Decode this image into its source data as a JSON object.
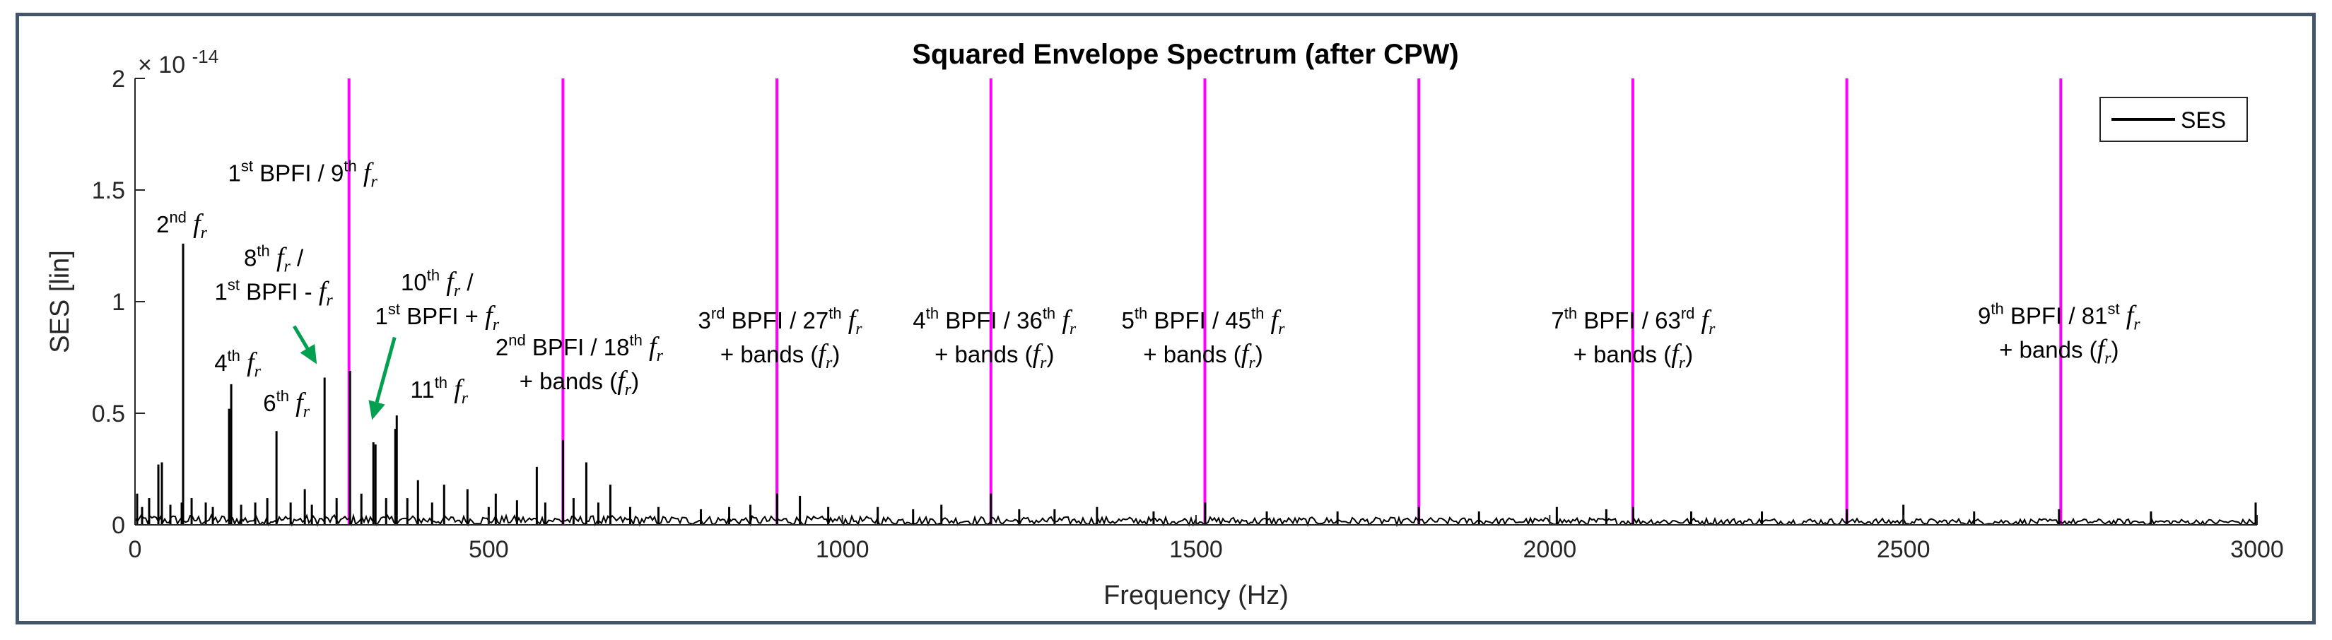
{
  "chart_data": {
    "type": "line",
    "title": "Squared Envelope Spectrum (after CPW)",
    "xlabel": "Frequency (Hz)",
    "ylabel": "SES [lin]",
    "y_exponent": "× 10",
    "y_exponent_power": "-14",
    "xlim": [
      0,
      3000
    ],
    "ylim": [
      0,
      2
    ],
    "x_ticks": [
      "0",
      "500",
      "1000",
      "1500",
      "2000",
      "2500",
      "3000"
    ],
    "y_ticks": [
      "0",
      "0.5",
      "1",
      "1.5",
      "2"
    ],
    "grid": false,
    "legend_position": "top-right",
    "series": [
      {
        "name": "SES",
        "color": "#000000",
        "peaks": [
          {
            "x": 3,
            "y": 0.14
          },
          {
            "x": 10,
            "y": 0.08
          },
          {
            "x": 20,
            "y": 0.12
          },
          {
            "x": 33,
            "y": 0.27
          },
          {
            "x": 38,
            "y": 0.28
          },
          {
            "x": 50,
            "y": 0.09
          },
          {
            "x": 66,
            "y": 0.1
          },
          {
            "x": 68,
            "y": 1.26
          },
          {
            "x": 80,
            "y": 0.12
          },
          {
            "x": 100,
            "y": 0.1
          },
          {
            "x": 110,
            "y": 0.08
          },
          {
            "x": 133,
            "y": 0.52
          },
          {
            "x": 136,
            "y": 0.63
          },
          {
            "x": 150,
            "y": 0.09
          },
          {
            "x": 170,
            "y": 0.1
          },
          {
            "x": 187,
            "y": 0.12
          },
          {
            "x": 200,
            "y": 0.42
          },
          {
            "x": 220,
            "y": 0.1
          },
          {
            "x": 240,
            "y": 0.16
          },
          {
            "x": 250,
            "y": 0.09
          },
          {
            "x": 268,
            "y": 0.66
          },
          {
            "x": 285,
            "y": 0.12
          },
          {
            "x": 304,
            "y": 0.69
          },
          {
            "x": 320,
            "y": 0.14
          },
          {
            "x": 337,
            "y": 0.37
          },
          {
            "x": 340,
            "y": 0.36
          },
          {
            "x": 355,
            "y": 0.12
          },
          {
            "x": 368,
            "y": 0.43
          },
          {
            "x": 370,
            "y": 0.49
          },
          {
            "x": 385,
            "y": 0.12
          },
          {
            "x": 400,
            "y": 0.2
          },
          {
            "x": 420,
            "y": 0.1
          },
          {
            "x": 437,
            "y": 0.18
          },
          {
            "x": 470,
            "y": 0.16
          },
          {
            "x": 500,
            "y": 0.08
          },
          {
            "x": 510,
            "y": 0.14
          },
          {
            "x": 540,
            "y": 0.11
          },
          {
            "x": 568,
            "y": 0.26
          },
          {
            "x": 580,
            "y": 0.1
          },
          {
            "x": 605,
            "y": 0.38
          },
          {
            "x": 620,
            "y": 0.12
          },
          {
            "x": 638,
            "y": 0.28
          },
          {
            "x": 655,
            "y": 0.1
          },
          {
            "x": 672,
            "y": 0.18
          },
          {
            "x": 700,
            "y": 0.08
          },
          {
            "x": 740,
            "y": 0.08
          },
          {
            "x": 800,
            "y": 0.07
          },
          {
            "x": 840,
            "y": 0.08
          },
          {
            "x": 870,
            "y": 0.09
          },
          {
            "x": 908,
            "y": 0.14
          },
          {
            "x": 940,
            "y": 0.13
          },
          {
            "x": 980,
            "y": 0.08
          },
          {
            "x": 1050,
            "y": 0.08
          },
          {
            "x": 1100,
            "y": 0.07
          },
          {
            "x": 1140,
            "y": 0.09
          },
          {
            "x": 1210,
            "y": 0.14
          },
          {
            "x": 1250,
            "y": 0.07
          },
          {
            "x": 1300,
            "y": 0.07
          },
          {
            "x": 1360,
            "y": 0.08
          },
          {
            "x": 1440,
            "y": 0.06
          },
          {
            "x": 1513,
            "y": 0.1
          },
          {
            "x": 1600,
            "y": 0.06
          },
          {
            "x": 1700,
            "y": 0.06
          },
          {
            "x": 1815,
            "y": 0.08
          },
          {
            "x": 1900,
            "y": 0.06
          },
          {
            "x": 2010,
            "y": 0.08
          },
          {
            "x": 2080,
            "y": 0.07
          },
          {
            "x": 2118,
            "y": 0.08
          },
          {
            "x": 2200,
            "y": 0.06
          },
          {
            "x": 2300,
            "y": 0.06
          },
          {
            "x": 2420,
            "y": 0.07
          },
          {
            "x": 2500,
            "y": 0.09
          },
          {
            "x": 2600,
            "y": 0.06
          },
          {
            "x": 2720,
            "y": 0.07
          },
          {
            "x": 2850,
            "y": 0.06
          },
          {
            "x": 2998,
            "y": 0.1
          }
        ]
      }
    ],
    "vertical_markers": {
      "color": "#ff00ff",
      "x": [
        302.5,
        605,
        907.5,
        1210,
        1512.5,
        1815,
        2117.5,
        2420,
        2722.5
      ]
    },
    "annotations": [
      {
        "lines": [
          [
            [
              "1",
              ""
            ],
            [
              "st",
              "sup"
            ],
            [
              " BPFI / 9",
              ""
            ],
            [
              "th",
              "sup"
            ],
            [
              " ",
              ""
            ],
            [
              "f",
              "it"
            ],
            [
              "r",
              "sub"
            ]
          ]
        ],
        "x": 237,
        "y": 1.54
      },
      {
        "lines": [
          [
            [
              "2",
              ""
            ],
            [
              "nd",
              "sup"
            ],
            [
              " ",
              ""
            ],
            [
              "f",
              "it"
            ],
            [
              "r",
              "sub"
            ]
          ]
        ],
        "x": 66,
        "y": 1.31
      },
      {
        "lines": [
          [
            [
              "8",
              ""
            ],
            [
              "th",
              "sup"
            ],
            [
              " ",
              ""
            ],
            [
              "f",
              "it"
            ],
            [
              "r",
              "sub"
            ],
            [
              " /",
              ""
            ]
          ],
          [
            [
              "1",
              ""
            ],
            [
              "st",
              "sup"
            ],
            [
              " BPFI - ",
              ""
            ],
            [
              "f",
              "it"
            ],
            [
              "r",
              "sub"
            ]
          ]
        ],
        "x": 196,
        "y": 1.16
      },
      {
        "lines": [
          [
            [
              "10",
              ""
            ],
            [
              "th",
              "sup"
            ],
            [
              " ",
              ""
            ],
            [
              "f",
              "it"
            ],
            [
              "r",
              "sub"
            ],
            [
              " /",
              ""
            ]
          ],
          [
            [
              "1",
              ""
            ],
            [
              "st",
              "sup"
            ],
            [
              " BPFI + ",
              ""
            ],
            [
              "f",
              "it"
            ],
            [
              "r",
              "sub"
            ]
          ]
        ],
        "x": 427,
        "y": 1.05
      },
      {
        "lines": [
          [
            [
              "4",
              ""
            ],
            [
              "th",
              "sup"
            ],
            [
              " ",
              ""
            ],
            [
              "f",
              "it"
            ],
            [
              "r",
              "sub"
            ]
          ]
        ],
        "x": 145,
        "y": 0.69
      },
      {
        "lines": [
          [
            [
              "6",
              ""
            ],
            [
              "th",
              "sup"
            ],
            [
              " ",
              ""
            ],
            [
              "f",
              "it"
            ],
            [
              "r",
              "sub"
            ]
          ]
        ],
        "x": 214,
        "y": 0.51
      },
      {
        "lines": [
          [
            [
              "11",
              ""
            ],
            [
              "th",
              "sup"
            ],
            [
              " ",
              ""
            ],
            [
              "f",
              "it"
            ],
            [
              "r",
              "sub"
            ]
          ]
        ],
        "x": 430,
        "y": 0.57
      },
      {
        "lines": [
          [
            [
              "2",
              ""
            ],
            [
              "nd",
              "sup"
            ],
            [
              " BPFI / 18",
              ""
            ],
            [
              "th",
              "sup"
            ],
            [
              " ",
              ""
            ],
            [
              "f",
              "it"
            ],
            [
              "r",
              "sub"
            ]
          ],
          [
            [
              "+ bands (",
              ""
            ],
            [
              "f",
              "it"
            ],
            [
              "r",
              "sub"
            ],
            [
              ")",
              ""
            ]
          ]
        ],
        "x": 628,
        "y": 0.76
      },
      {
        "lines": [
          [
            [
              "3",
              ""
            ],
            [
              "rd",
              "sup"
            ],
            [
              " BPFI / 27",
              ""
            ],
            [
              "th",
              "sup"
            ],
            [
              " ",
              ""
            ],
            [
              "f",
              "it"
            ],
            [
              "r",
              "sub"
            ]
          ],
          [
            [
              "+ bands (",
              ""
            ],
            [
              "f",
              "it"
            ],
            [
              "r",
              "sub"
            ],
            [
              ")",
              ""
            ]
          ]
        ],
        "x": 912,
        "y": 0.88
      },
      {
        "lines": [
          [
            [
              "4",
              ""
            ],
            [
              "th",
              "sup"
            ],
            [
              " BPFI / 36",
              ""
            ],
            [
              "th",
              "sup"
            ],
            [
              " ",
              ""
            ],
            [
              "f",
              "it"
            ],
            [
              "r",
              "sub"
            ]
          ],
          [
            [
              "+ bands (",
              ""
            ],
            [
              "f",
              "it"
            ],
            [
              "r",
              "sub"
            ],
            [
              ")",
              ""
            ]
          ]
        ],
        "x": 1215,
        "y": 0.88
      },
      {
        "lines": [
          [
            [
              "5",
              ""
            ],
            [
              "th",
              "sup"
            ],
            [
              " BPFI / 45",
              ""
            ],
            [
              "th",
              "sup"
            ],
            [
              " ",
              ""
            ],
            [
              "f",
              "it"
            ],
            [
              "r",
              "sub"
            ]
          ],
          [
            [
              "+ bands (",
              ""
            ],
            [
              "f",
              "it"
            ],
            [
              "r",
              "sub"
            ],
            [
              ")",
              ""
            ]
          ]
        ],
        "x": 1510,
        "y": 0.88
      },
      {
        "lines": [
          [
            [
              "7",
              ""
            ],
            [
              "th",
              "sup"
            ],
            [
              " BPFI / 63",
              ""
            ],
            [
              "rd",
              "sup"
            ],
            [
              " ",
              ""
            ],
            [
              "f",
              "it"
            ],
            [
              "r",
              "sub"
            ]
          ],
          [
            [
              "+ bands (",
              ""
            ],
            [
              "f",
              "it"
            ],
            [
              "r",
              "sub"
            ],
            [
              ")",
              ""
            ]
          ]
        ],
        "x": 2118,
        "y": 0.88
      },
      {
        "lines": [
          [
            [
              "9",
              ""
            ],
            [
              "th",
              "sup"
            ],
            [
              " BPFI / 81",
              ""
            ],
            [
              "st",
              "sup"
            ],
            [
              " ",
              ""
            ],
            [
              "f",
              "it"
            ],
            [
              "r",
              "sub"
            ]
          ],
          [
            [
              "+ bands (",
              ""
            ],
            [
              "f",
              "it"
            ],
            [
              "r",
              "sub"
            ],
            [
              ")",
              ""
            ]
          ]
        ],
        "x": 2720,
        "y": 0.9
      }
    ],
    "arrows": [
      {
        "color": "#00a050",
        "from": [
          225,
          0.89
        ],
        "to": [
          257,
          0.72
        ]
      },
      {
        "color": "#00a050",
        "from": [
          367,
          0.84
        ],
        "to": [
          335,
          0.47
        ]
      }
    ]
  }
}
